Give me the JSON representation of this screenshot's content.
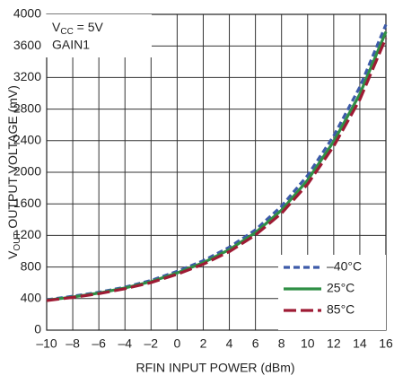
{
  "chart_data": {
    "type": "line",
    "annotation": {
      "line1": [
        "V",
        "CC",
        " = 5V"
      ],
      "line2": "GAIN1"
    },
    "x_label": "RFIN INPUT POWER (dBm)",
    "y_label": [
      "V",
      "OUT",
      " OUTPUT VOLTAGE (mV)"
    ],
    "x": [
      -10,
      -8,
      -6,
      -4,
      -2,
      0,
      2,
      4,
      6,
      8,
      10,
      12,
      14,
      16
    ],
    "series": [
      {
        "name": "–40°C",
        "color": "#3d5ba9",
        "values": [
          385,
          430,
          480,
          545,
          630,
          745,
          880,
          1050,
          1270,
          1570,
          1960,
          2460,
          3080,
          3870
        ]
      },
      {
        "name": "25°C",
        "color": "#2f8f45",
        "values": [
          380,
          420,
          470,
          535,
          615,
          725,
          855,
          1020,
          1235,
          1520,
          1900,
          2390,
          2990,
          3780
        ]
      },
      {
        "name": "85°C",
        "color": "#9e1b34",
        "values": [
          375,
          415,
          462,
          525,
          603,
          708,
          835,
          995,
          1205,
          1480,
          1850,
          2330,
          2920,
          3700
        ]
      }
    ],
    "xlim": [
      -10,
      16
    ],
    "xticks": [
      {
        "value": -10,
        "label": "–10"
      },
      {
        "value": -8,
        "label": "–8"
      },
      {
        "value": -6,
        "label": "–6"
      },
      {
        "value": -4,
        "label": "–4"
      },
      {
        "value": -2,
        "label": "–2"
      },
      0,
      2,
      4,
      6,
      8,
      10,
      12,
      14,
      16
    ],
    "ylim": [
      0,
      4000
    ],
    "yticks": [
      0,
      400,
      800,
      1200,
      1600,
      2000,
      2400,
      2800,
      3200,
      3600,
      4000
    ],
    "grid": true,
    "legend": "lower right"
  }
}
